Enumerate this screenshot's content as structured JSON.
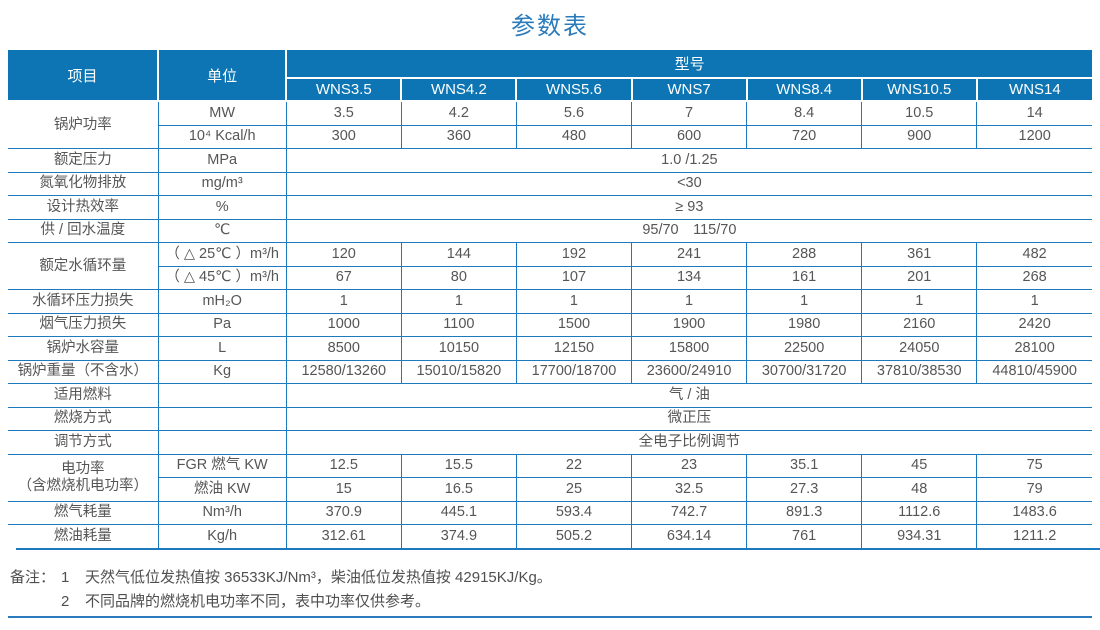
{
  "title": "参数表",
  "table": {
    "header": {
      "item": "项目",
      "unit": "单位",
      "model_group": "型号",
      "models": [
        "WNS3.5",
        "WNS4.2",
        "WNS5.6",
        "WNS7",
        "WNS8.4",
        "WNS10.5",
        "WNS14"
      ]
    },
    "rows": [
      {
        "item": "锅炉功率",
        "rowspan": 2,
        "unit": "MW",
        "values": [
          "3.5",
          "4.2",
          "5.6",
          "7",
          "8.4",
          "10.5",
          "14"
        ]
      },
      {
        "unit": "10⁴ Kcal/h",
        "values": [
          "300",
          "360",
          "480",
          "600",
          "720",
          "900",
          "1200"
        ]
      },
      {
        "item": "额定压力",
        "unit": "MPa",
        "span": "1.0 /1.25"
      },
      {
        "item": "氮氧化物排放",
        "unit": "mg/m³",
        "span": "<30"
      },
      {
        "item": "设计热效率",
        "unit": "%",
        "span": "≥ 93"
      },
      {
        "item": "供 / 回水温度",
        "unit": "℃",
        "span": "95/70　115/70"
      },
      {
        "item": "额定水循环量",
        "rowspan": 2,
        "unit": "（ △ 25℃ ）m³/h",
        "values": [
          "120",
          "144",
          "192",
          "241",
          "288",
          "361",
          "482"
        ]
      },
      {
        "unit": "（ △ 45℃ ）m³/h",
        "values": [
          "67",
          "80",
          "107",
          "134",
          "161",
          "201",
          "268"
        ]
      },
      {
        "item": "水循环压力损失",
        "unit": "mH₂O",
        "values": [
          "1",
          "1",
          "1",
          "1",
          "1",
          "1",
          "1"
        ]
      },
      {
        "item": "烟气压力损失",
        "unit": "Pa",
        "values": [
          "1000",
          "1100",
          "1500",
          "1900",
          "1980",
          "2160",
          "2420"
        ]
      },
      {
        "item": "锅炉水容量",
        "unit": "L",
        "values": [
          "8500",
          "10150",
          "12150",
          "15800",
          "22500",
          "24050",
          "28100"
        ]
      },
      {
        "item": "锅炉重量（不含水）",
        "unit": "Kg",
        "values": [
          "12580/13260",
          "15010/15820",
          "17700/18700",
          "23600/24910",
          "30700/31720",
          "37810/38530",
          "44810/45900"
        ]
      },
      {
        "item": "适用燃料",
        "unit": "",
        "span": "气 / 油"
      },
      {
        "item": "燃烧方式",
        "unit": "",
        "span": "微正压"
      },
      {
        "item": "调节方式",
        "unit": "",
        "span": "全电子比例调节"
      },
      {
        "item": "电功率\n（含燃烧机电功率）",
        "rowspan": 2,
        "unit": "FGR 燃气 KW",
        "values": [
          "12.5",
          "15.5",
          "22",
          "23",
          "35.1",
          "45",
          "75"
        ]
      },
      {
        "unit": "燃油 KW",
        "values": [
          "15",
          "16.5",
          "25",
          "32.5",
          "27.3",
          "48",
          "79"
        ]
      },
      {
        "item": "燃气耗量",
        "unit": "Nm³/h",
        "values": [
          "370.9",
          "445.1",
          "593.4",
          "742.7",
          "891.3",
          "1112.6",
          "1483.6"
        ]
      },
      {
        "item": "燃油耗量",
        "unit": "Kg/h",
        "values": [
          "312.61",
          "374.9",
          "505.2",
          "634.14",
          "761",
          "934.31",
          "1211.2"
        ]
      }
    ]
  },
  "notes": {
    "label": "备注：",
    "items": [
      {
        "num": "1",
        "text": "天然气低位发热值按 36533KJ/Nm³，柴油低位发热值按 42915KJ/Kg。"
      },
      {
        "num": "2",
        "text": "不同品牌的燃烧机电功率不同，表中功率仅供参考。"
      }
    ]
  },
  "colors": {
    "header_bg": "#0D75B3",
    "grid_border": "#1E7ABE",
    "title_text": "#2B7BBB",
    "body_text": "#565656"
  }
}
